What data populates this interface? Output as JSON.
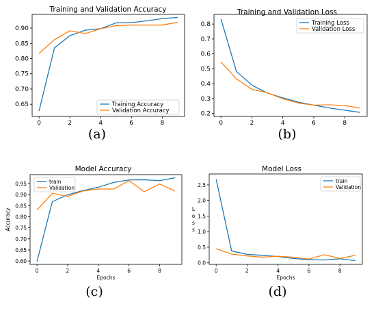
{
  "colors": {
    "blue": "#1f77b4",
    "orange": "#ff7f0e"
  },
  "chart_data": [
    {
      "id": "a",
      "panel_label": "(a)",
      "type": "line",
      "title": "Training and Validation Accuracy",
      "xlabel": "",
      "ylabel": "",
      "xlim": [
        -0.45,
        9.45
      ],
      "ylim": [
        0.61,
        0.945
      ],
      "xticks": [
        0,
        2,
        4,
        6,
        8
      ],
      "yticks": [
        0.65,
        0.7,
        0.75,
        0.8,
        0.85,
        0.9
      ],
      "ytick_decimals": 2,
      "x": [
        0,
        1,
        2,
        3,
        4,
        5,
        6,
        7,
        8,
        9
      ],
      "legend_position": "lower-right",
      "series": [
        {
          "name": "Training Accuracy",
          "color": "#1f77b4",
          "values": [
            0.628,
            0.835,
            0.875,
            0.893,
            0.898,
            0.917,
            0.918,
            0.924,
            0.931,
            0.935
          ]
        },
        {
          "name": "Validation Accuracy",
          "color": "#ff7f0e",
          "values": [
            0.817,
            0.862,
            0.891,
            0.882,
            0.898,
            0.908,
            0.91,
            0.91,
            0.91,
            0.919
          ]
        }
      ]
    },
    {
      "id": "b",
      "panel_label": "(b)",
      "type": "line",
      "title": "Training and Validation Loss",
      "xlabel": "",
      "ylabel": "",
      "xlim": [
        -0.45,
        9.45
      ],
      "ylim": [
        0.18,
        0.865
      ],
      "xticks": [
        0,
        2,
        4,
        6,
        8
      ],
      "yticks": [
        0.2,
        0.3,
        0.4,
        0.5,
        0.6,
        0.7,
        0.8
      ],
      "ytick_decimals": 1,
      "x": [
        0,
        1,
        2,
        3,
        4,
        5,
        6,
        7,
        8,
        9
      ],
      "legend_position": "top-right",
      "series": [
        {
          "name": "Training Loss",
          "color": "#1f77b4",
          "values": [
            0.835,
            0.482,
            0.39,
            0.337,
            0.305,
            0.276,
            0.256,
            0.237,
            0.222,
            0.207
          ]
        },
        {
          "name": "Validation Loss",
          "color": "#ff7f0e",
          "values": [
            0.545,
            0.432,
            0.362,
            0.339,
            0.298,
            0.27,
            0.256,
            0.258,
            0.253,
            0.236
          ]
        }
      ]
    },
    {
      "id": "c",
      "panel_label": "(c)",
      "type": "line",
      "title": "Model Accuracy",
      "xlabel": "Epochs",
      "ylabel": "Accuracy",
      "xlim": [
        -0.45,
        9.45
      ],
      "ylim": [
        0.585,
        0.99
      ],
      "xticks": [
        0,
        2,
        4,
        6,
        8
      ],
      "yticks": [
        0.6,
        0.65,
        0.7,
        0.75,
        0.8,
        0.85,
        0.9,
        0.95
      ],
      "ytick_decimals": 2,
      "x": [
        0,
        1,
        2,
        3,
        4,
        5,
        6,
        7,
        8,
        9
      ],
      "legend_position": "top-left",
      "series": [
        {
          "name": "train",
          "color": "#1f77b4",
          "values": [
            0.598,
            0.868,
            0.899,
            0.918,
            0.933,
            0.955,
            0.966,
            0.967,
            0.963,
            0.976
          ]
        },
        {
          "name": "Validation",
          "color": "#ff7f0e",
          "values": [
            0.83,
            0.906,
            0.892,
            0.916,
            0.925,
            0.925,
            0.963,
            0.913,
            0.948,
            0.916
          ]
        }
      ]
    },
    {
      "id": "d",
      "panel_label": "(d)",
      "type": "line",
      "title": "Model   Loss",
      "xlabel": "Epochs",
      "ylabel": "L o s s",
      "xlim": [
        -0.45,
        9.45
      ],
      "ylim": [
        -0.05,
        2.85
      ],
      "xticks": [
        0,
        2,
        4,
        6,
        8
      ],
      "yticks": [
        0.0,
        0.5,
        1.0,
        1.5,
        2.0,
        2.5
      ],
      "ytick_decimals": 1,
      "x": [
        0,
        1,
        2,
        3,
        4,
        5,
        6,
        7,
        8,
        9
      ],
      "legend_position": "top-right",
      "series": [
        {
          "name": "train",
          "color": "#1f77b4",
          "values": [
            2.68,
            0.38,
            0.27,
            0.24,
            0.2,
            0.14,
            0.1,
            0.09,
            0.13,
            0.07
          ]
        },
        {
          "name": "Validation",
          "color": "#ff7f0e",
          "values": [
            0.45,
            0.28,
            0.22,
            0.18,
            0.21,
            0.18,
            0.12,
            0.26,
            0.14,
            0.24
          ]
        }
      ]
    }
  ]
}
